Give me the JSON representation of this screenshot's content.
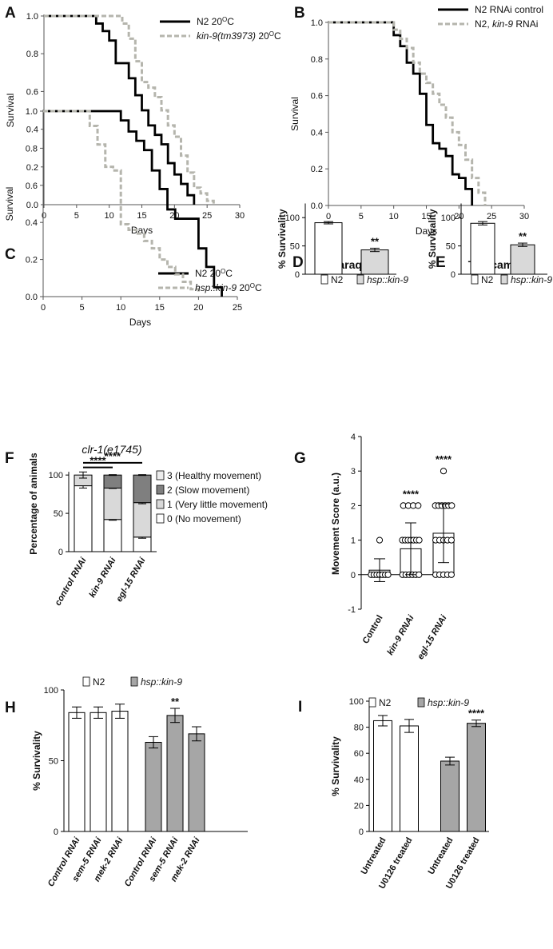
{
  "chart_data": [
    {
      "id": "A",
      "type": "line",
      "label": "A",
      "xlabel": "Days",
      "ylabel": "Survival",
      "xlim": [
        0,
        30
      ],
      "ylim": [
        0,
        1
      ],
      "xticks": [
        0,
        5,
        10,
        15,
        20,
        25,
        30
      ],
      "xtick_labels": [
        "0",
        "5",
        "10",
        "15",
        "20",
        "25",
        "30"
      ],
      "yticks": [
        0,
        0.2,
        0.4,
        0.6,
        0.8,
        1.0
      ],
      "ytick_labels": [
        "0.0",
        "0.2",
        "0.4",
        "0.6",
        "0.8",
        "1.0"
      ],
      "series": [
        {
          "name": "N2 20ºC",
          "parts": [
            {
              "t": "N2 20"
            },
            {
              "t": "O",
              "sup": true
            },
            {
              "t": "C"
            }
          ],
          "style": "solid",
          "x": [
            0,
            8,
            9,
            10,
            11,
            13,
            14,
            15,
            16,
            17,
            18,
            19,
            20,
            21,
            22,
            23
          ],
          "y": [
            1.0,
            0.96,
            0.92,
            0.87,
            0.75,
            0.67,
            0.58,
            0.5,
            0.42,
            0.37,
            0.32,
            0.22,
            0.16,
            0.11,
            0.05,
            0.0
          ]
        },
        {
          "name": "kin-9(tm3973) 20ºC",
          "parts": [
            {
              "t": "kin-9(tm3973)",
              "i": true
            },
            {
              "t": " 20"
            },
            {
              "t": "O",
              "sup": true
            },
            {
              "t": "C"
            }
          ],
          "style": "dashed",
          "x": [
            0,
            12,
            13,
            14,
            15,
            16,
            17,
            18,
            19,
            20,
            21,
            22,
            23,
            24,
            25,
            26
          ],
          "y": [
            1.0,
            0.96,
            0.88,
            0.76,
            0.65,
            0.62,
            0.57,
            0.5,
            0.42,
            0.36,
            0.26,
            0.17,
            0.09,
            0.06,
            0.02,
            0.0
          ]
        }
      ]
    },
    {
      "id": "B",
      "type": "line",
      "label": "B",
      "xlabel": "Days",
      "ylabel": "Survival",
      "xlim": [
        0,
        30
      ],
      "ylim": [
        0,
        1
      ],
      "xticks": [
        0,
        5,
        10,
        15,
        20,
        25,
        30
      ],
      "xtick_labels": [
        "0",
        "5",
        "10",
        "15",
        "20",
        "25",
        "30"
      ],
      "yticks": [
        0,
        0.2,
        0.4,
        0.6,
        0.8,
        1.0
      ],
      "ytick_labels": [
        "0.0",
        "0.2",
        "0.4",
        "0.6",
        "0.8",
        "1.0"
      ],
      "series": [
        {
          "name": "N2 RNAi control",
          "parts": [
            {
              "t": "N2 RNAi control"
            }
          ],
          "style": "solid",
          "x": [
            0,
            10,
            11,
            12,
            13,
            14,
            15,
            16,
            17,
            18,
            19,
            20,
            21,
            22
          ],
          "y": [
            1.0,
            0.93,
            0.87,
            0.78,
            0.72,
            0.61,
            0.44,
            0.34,
            0.31,
            0.27,
            0.17,
            0.15,
            0.09,
            0.0
          ]
        },
        {
          "name": "N2, kin-9 RNAi",
          "parts": [
            {
              "t": "N2, "
            },
            {
              "t": "kin-9",
              "i": true
            },
            {
              "t": " RNAi"
            }
          ],
          "style": "dashed",
          "x": [
            0,
            10,
            11,
            12,
            13,
            14,
            15,
            16,
            17,
            18,
            19,
            20,
            21,
            22,
            23,
            24
          ],
          "y": [
            1.0,
            0.96,
            0.91,
            0.86,
            0.78,
            0.72,
            0.67,
            0.61,
            0.55,
            0.48,
            0.4,
            0.33,
            0.25,
            0.15,
            0.07,
            0.0
          ]
        }
      ]
    },
    {
      "id": "C",
      "type": "line",
      "label": "C",
      "xlabel": "Days",
      "ylabel": "Survival",
      "xlim": [
        0,
        25
      ],
      "ylim": [
        0,
        1
      ],
      "xticks": [
        0,
        5,
        10,
        15,
        20,
        25
      ],
      "xtick_labels": [
        "0",
        "5",
        "10",
        "15",
        "20",
        "25"
      ],
      "yticks": [
        0,
        0.2,
        0.4,
        0.6,
        0.8,
        1.0
      ],
      "ytick_labels": [
        "0.0",
        "0.2",
        "0.4",
        "0.6",
        "0.8",
        "1.0"
      ],
      "series": [
        {
          "name": "N2 20ºC",
          "parts": [
            {
              "t": "N2 20"
            },
            {
              "t": "O",
              "sup": true
            },
            {
              "t": "C"
            }
          ],
          "style": "solid",
          "x": [
            0,
            10,
            11,
            12,
            13,
            14,
            15,
            16,
            17,
            20,
            21,
            22,
            23
          ],
          "y": [
            1.0,
            0.95,
            0.89,
            0.84,
            0.79,
            0.68,
            0.58,
            0.47,
            0.42,
            0.26,
            0.16,
            0.05,
            0.0
          ]
        },
        {
          "name": "hsp::kin-9 20ºC",
          "parts": [
            {
              "t": "hsp::kin-9",
              "i": true
            },
            {
              "t": " 20"
            },
            {
              "t": "O",
              "sup": true
            },
            {
              "t": "C"
            }
          ],
          "style": "dashed",
          "x": [
            0,
            6,
            7,
            8,
            9,
            10,
            11,
            12,
            13,
            14,
            15,
            16,
            17,
            18,
            19,
            20
          ],
          "y": [
            1.0,
            0.92,
            0.82,
            0.7,
            0.68,
            0.39,
            0.36,
            0.34,
            0.3,
            0.26,
            0.2,
            0.16,
            0.12,
            0.08,
            0.04,
            0.02
          ]
        }
      ]
    },
    {
      "id": "D",
      "type": "bar",
      "label": "D",
      "title": "Paraquat",
      "ylabel": "% Survivality",
      "ylim": [
        0,
        125
      ],
      "yticks": [
        0,
        50,
        100
      ],
      "ytick_labels": [
        "0",
        "50",
        "100"
      ],
      "legend": [
        {
          "name": "N2",
          "parts": [
            {
              "t": "N2"
            }
          ],
          "color": "#ffffff"
        },
        {
          "name": "hsp::kin-9",
          "parts": [
            {
              "t": "hsp::kin-9",
              "i": true
            }
          ],
          "color": "#d9d9d9"
        }
      ],
      "bars": [
        {
          "value": 91,
          "error": 2,
          "color": "#ffffff"
        },
        {
          "value": 43,
          "error": 3,
          "color": "#d9d9d9",
          "stars": "**"
        }
      ]
    },
    {
      "id": "E",
      "type": "bar",
      "label": "E",
      "title": "Tunicamycin",
      "ylabel": "% Survivality",
      "ylim": [
        0,
        125
      ],
      "yticks": [
        0,
        50,
        100
      ],
      "ytick_labels": [
        "0",
        "50",
        "100"
      ],
      "legend": [
        {
          "name": "N2",
          "parts": [
            {
              "t": "N2"
            }
          ],
          "color": "#ffffff"
        },
        {
          "name": "hsp::kin-9",
          "parts": [
            {
              "t": "hsp::kin-9",
              "i": true
            }
          ],
          "color": "#d9d9d9"
        }
      ],
      "bars": [
        {
          "value": 90,
          "error": 3,
          "color": "#ffffff"
        },
        {
          "value": 52,
          "error": 3,
          "color": "#d9d9d9",
          "stars": "**"
        }
      ]
    },
    {
      "id": "F",
      "type": "bar",
      "label": "F",
      "title": "clr-1(e1745)",
      "ylabel": "Percentage of animals",
      "ylim": [
        0,
        120
      ],
      "yticks": [
        0,
        50,
        100
      ],
      "ytick_labels": [
        "0",
        "50",
        "100"
      ],
      "categories": [
        "control RNAi",
        "kin-9 RNAi",
        "egl-15 RNAi"
      ],
      "series": [
        {
          "name": "0 (No movement)",
          "color": "#ffffff",
          "values": [
            86,
            42,
            19
          ],
          "errors": [
            3,
            1,
            1.5
          ]
        },
        {
          "name": "1 (Very little movement)",
          "color": "#d9d9d9",
          "values": [
            14,
            41,
            45
          ],
          "errors": [
            4,
            0.5,
            1.5
          ]
        },
        {
          "name": "2 (Slow movement)",
          "color": "#7f7f7f",
          "values": [
            0,
            17,
            36
          ],
          "errors": [
            0,
            0.5,
            0.5
          ]
        },
        {
          "name": "3 (Healthy movement)",
          "color": "#ececec",
          "values": [
            0,
            0,
            0
          ],
          "errors": [
            0,
            0,
            0
          ]
        }
      ],
      "brackets": [
        {
          "from": 0,
          "to": 1,
          "value": 110,
          "stars": "****"
        },
        {
          "from": 0,
          "to": 2,
          "value": 116,
          "stars": "****"
        }
      ]
    },
    {
      "id": "G",
      "type": "bar",
      "label": "G",
      "ylabel": "Movement Score (a.u.)",
      "ylim": [
        -1,
        4
      ],
      "yticks": [
        -1,
        0,
        1,
        2,
        3,
        4
      ],
      "ytick_labels": [
        "-1",
        "0",
        "1",
        "2",
        "3",
        "4"
      ],
      "categories": [
        "Control",
        "kin-9 RNAi",
        "egl-15 RNAi"
      ],
      "bars": [
        {
          "value": 0.13,
          "sd": 0.33,
          "stars": "",
          "points": [
            {
              "y": 0,
              "n": 7
            },
            {
              "y": 1,
              "n": 1
            }
          ]
        },
        {
          "value": 0.75,
          "sd": 0.75,
          "stars": "****",
          "points": [
            {
              "y": 0,
              "n": 6
            },
            {
              "y": 1,
              "n": 7
            },
            {
              "y": 2,
              "n": 4
            }
          ]
        },
        {
          "value": 1.2,
          "sd": 0.85,
          "stars": "****",
          "points": [
            {
              "y": 0,
              "n": 5
            },
            {
              "y": 1,
              "n": 5
            },
            {
              "y": 2,
              "n": 6
            },
            {
              "y": 3,
              "n": 1
            }
          ]
        }
      ]
    },
    {
      "id": "H",
      "type": "bar",
      "label": "H",
      "ylabel": "% Survivality",
      "ylim": [
        0,
        100
      ],
      "yticks": [
        0,
        50,
        100
      ],
      "ytick_labels": [
        "0",
        "50",
        "100"
      ],
      "legend": [
        {
          "name": "N2",
          "parts": [
            {
              "t": "N2"
            }
          ],
          "color": "#ffffff"
        },
        {
          "name": "hsp::kin-9",
          "parts": [
            {
              "t": "hsp::kin-9",
              "i": true
            }
          ],
          "color": "#a6a6a6"
        }
      ],
      "categories": [
        "Control RNAi",
        "sem-5 RNAi",
        "mek-2 RNAi",
        "Control RNAi",
        "sem-5 RNAi",
        "mek-2 RNAi"
      ],
      "bars": [
        {
          "value": 84,
          "error": 4,
          "color": "#ffffff"
        },
        {
          "value": 84,
          "error": 4,
          "color": "#ffffff"
        },
        {
          "value": 85,
          "error": 5,
          "color": "#ffffff"
        },
        {
          "value": 63,
          "error": 4,
          "color": "#a6a6a6"
        },
        {
          "value": 82,
          "error": 5,
          "color": "#a6a6a6",
          "stars": "**"
        },
        {
          "value": 69,
          "error": 5,
          "color": "#a6a6a6"
        }
      ]
    },
    {
      "id": "I",
      "type": "bar",
      "label": "I",
      "ylabel": "% Survivality",
      "ylim": [
        0,
        100
      ],
      "yticks": [
        0,
        20,
        40,
        60,
        80,
        100
      ],
      "ytick_labels": [
        "0",
        "20",
        "40",
        "60",
        "80",
        "100"
      ],
      "legend": [
        {
          "name": "N2",
          "parts": [
            {
              "t": "N2"
            }
          ],
          "color": "#ffffff"
        },
        {
          "name": "hsp::kin-9",
          "parts": [
            {
              "t": "hsp::kin-9",
              "i": true
            }
          ],
          "color": "#a6a6a6"
        }
      ],
      "categories": [
        "Untreated",
        "U0126 treated",
        "Untreated",
        "U0126 treated"
      ],
      "bars": [
        {
          "value": 85,
          "error": 4,
          "color": "#ffffff"
        },
        {
          "value": 81,
          "error": 5,
          "color": "#ffffff"
        },
        {
          "value": 54,
          "error": 3,
          "color": "#a6a6a6"
        },
        {
          "value": 83,
          "error": 2.5,
          "color": "#a6a6a6",
          "stars": "****"
        }
      ]
    }
  ]
}
